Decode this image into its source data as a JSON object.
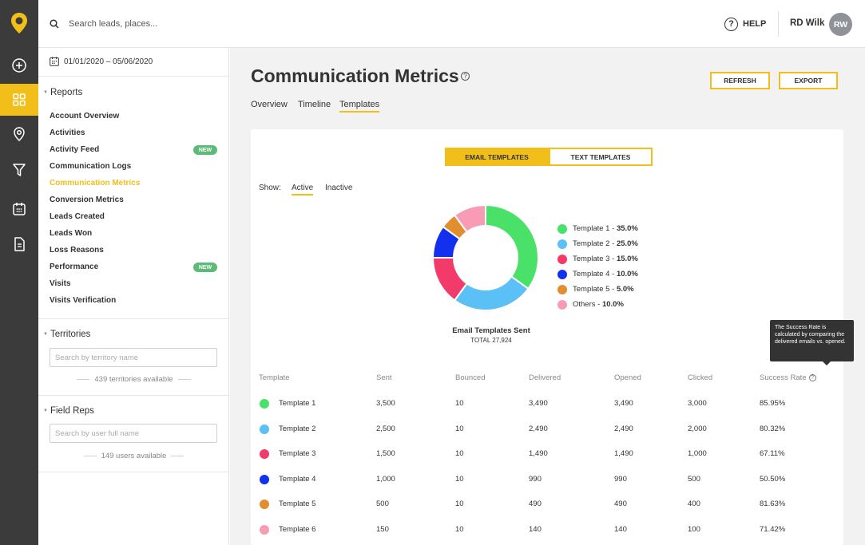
{
  "topbar": {
    "search_placeholder": "Search leads, places...",
    "help_label": "HELP",
    "help_glyph": "?",
    "user_name": "RD Wilk",
    "user_initials": "RW"
  },
  "rail": {
    "items": [
      "add-icon",
      "dashboard-icon",
      "map-pin-icon",
      "filter-icon",
      "calendar-icon",
      "document-icon"
    ],
    "active_index": 1
  },
  "sidepanel": {
    "date_range": "01/01/2020 – 05/06/2020",
    "reports_title": "Reports",
    "reports": [
      {
        "label": "Account Overview",
        "badge": ""
      },
      {
        "label": "Activities",
        "badge": ""
      },
      {
        "label": "Activity Feed",
        "badge": "NEW"
      },
      {
        "label": "Communication Logs",
        "badge": ""
      },
      {
        "label": "Communication Metrics",
        "badge": ""
      },
      {
        "label": "Conversion Metrics",
        "badge": ""
      },
      {
        "label": "Leads Created",
        "badge": ""
      },
      {
        "label": "Leads Won",
        "badge": ""
      },
      {
        "label": "Loss Reasons",
        "badge": ""
      },
      {
        "label": "Performance",
        "badge": "NEW"
      },
      {
        "label": "Visits",
        "badge": ""
      },
      {
        "label": "Visits Verification",
        "badge": ""
      }
    ],
    "active_report_index": 4,
    "territories_title": "Territories",
    "territory_search_placeholder": "Search by territory name",
    "territories_available": "439 territories available",
    "field_reps_title": "Field Reps",
    "user_search_placeholder": "Search by user full name",
    "users_available": "149 users available"
  },
  "main": {
    "title": "Communication Metrics",
    "title_help_glyph": "?",
    "subtabs": [
      "Overview",
      "Timeline",
      "Templates"
    ],
    "active_subtab_index": 2,
    "refresh_label": "REFRESH",
    "export_label": "EXPORT",
    "segment": {
      "email": "EMAIL TEMPLATES",
      "text": "TEXT TEMPLATES",
      "active": "email"
    },
    "show_label": "Show:",
    "show_active": "Active",
    "show_inactive": "Inactive",
    "donut_caption": "Email Templates Sent",
    "donut_total": "TOTAL 27,924",
    "tooltip": "The Success Rate is calculated by comparing the delivered emails vs. opened.",
    "table_headers": [
      "Template",
      "Sent",
      "Bounced",
      "Delivered",
      "Opened",
      "Clicked",
      "Success Rate"
    ],
    "rows": [
      {
        "name": "Template 1",
        "sent": "3,500",
        "bounced": "10",
        "delivered": "3,490",
        "opened": "3,490",
        "clicked": "3,000",
        "rate": "85.95%",
        "color": "#4ae168"
      },
      {
        "name": "Template 2",
        "sent": "2,500",
        "bounced": "10",
        "delivered": "2,490",
        "opened": "2,490",
        "clicked": "2,000",
        "rate": "80.32%",
        "color": "#5bc0f5"
      },
      {
        "name": "Template 3",
        "sent": "1,500",
        "bounced": "10",
        "delivered": "1,490",
        "opened": "1,490",
        "clicked": "1,000",
        "rate": "67.11%",
        "color": "#f23b6b"
      },
      {
        "name": "Template 4",
        "sent": "1,000",
        "bounced": "10",
        "delivered": "990",
        "opened": "990",
        "clicked": "500",
        "rate": "50.50%",
        "color": "#1230ed"
      },
      {
        "name": "Template 5",
        "sent": "500",
        "bounced": "10",
        "delivered": "490",
        "opened": "490",
        "clicked": "400",
        "rate": "81.63%",
        "color": "#e08e2e"
      },
      {
        "name": "Template 6",
        "sent": "150",
        "bounced": "10",
        "delivered": "140",
        "opened": "140",
        "clicked": "100",
        "rate": "71.42%",
        "color": "#f89cb5"
      }
    ]
  },
  "colors": {
    "accent": "#f2be1a",
    "rail": "#3b3b3b",
    "badge": "#5dbb78"
  },
  "chart_data": {
    "type": "pie",
    "title": "Email Templates Sent",
    "subtitle": "TOTAL 27,924",
    "legend_position": "right",
    "slices": [
      {
        "label": "Template 1",
        "value": 35.0,
        "display": "35.0%",
        "color": "#4ae168"
      },
      {
        "label": "Template 2",
        "value": 25.0,
        "display": "25.0%",
        "color": "#5bc0f5"
      },
      {
        "label": "Template 3",
        "value": 15.0,
        "display": "15.0%",
        "color": "#f23b6b"
      },
      {
        "label": "Template 4",
        "value": 10.0,
        "display": "10.0%",
        "color": "#1230ed"
      },
      {
        "label": "Template 5",
        "value": 5.0,
        "display": "5.0%",
        "color": "#e08e2e"
      },
      {
        "label": "Others",
        "value": 10.0,
        "display": "10.0%",
        "color": "#f89cb5"
      }
    ]
  }
}
